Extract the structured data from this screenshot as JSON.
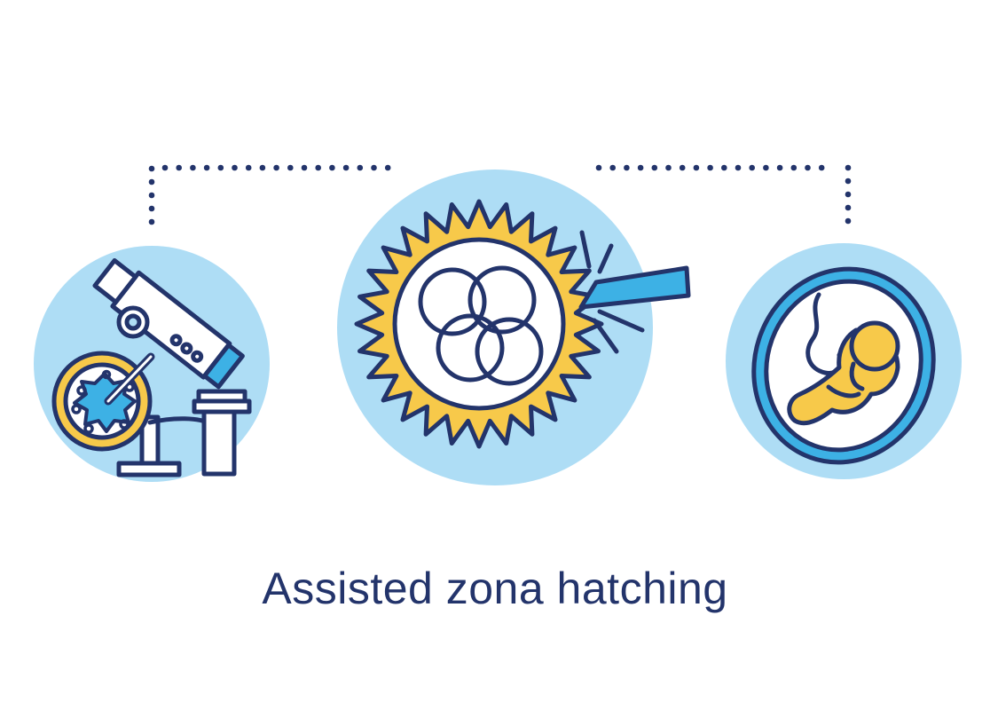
{
  "title": "Assisted zona hatching",
  "colors": {
    "navy": "#23346B",
    "light_blue": "#AEDDF5",
    "bright_blue": "#3DB1E5",
    "yellow": "#F7C94A",
    "white": "#FFFFFF"
  },
  "icons": {
    "left": "microscope-icon",
    "center": "hatching-embryo-icon",
    "right": "fetus-in-womb-icon"
  }
}
